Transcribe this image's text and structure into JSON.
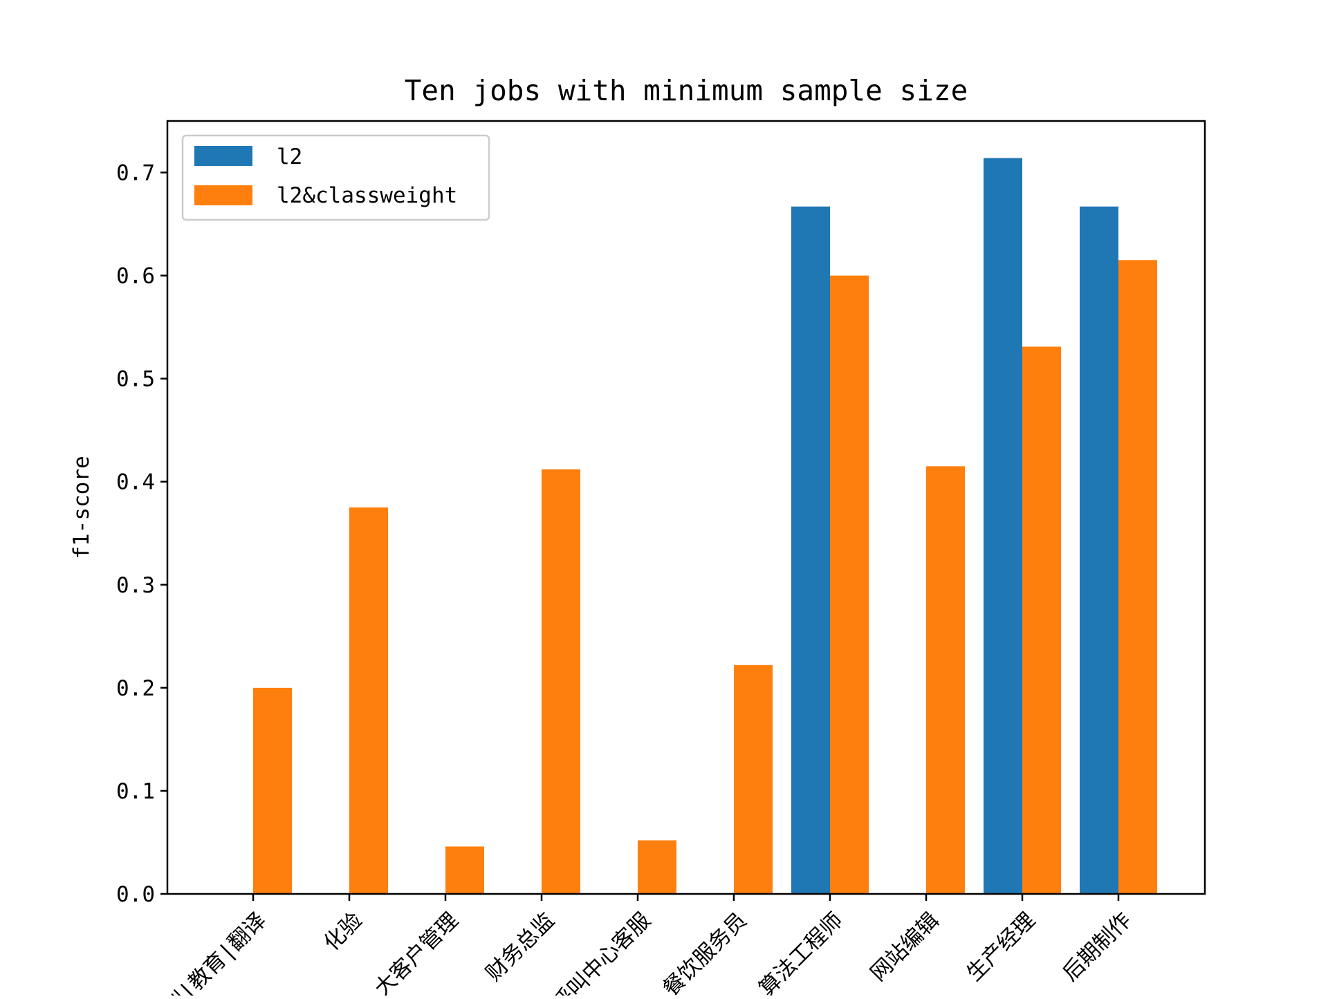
{
  "chart_data": {
    "type": "bar",
    "title": "Ten jobs with minimum sample size",
    "xlabel": "",
    "ylabel": "f1-score",
    "ylim": [
      0,
      0.75
    ],
    "yticks": [
      "0.0",
      "0.1",
      "0.2",
      "0.3",
      "0.4",
      "0.5",
      "0.6",
      "0.7"
    ],
    "categories": [
      "培训|教育|翻译",
      "化验",
      "大客户管理",
      "财务总监",
      "呼叫中心客服",
      "餐饮服务员",
      "算法工程师",
      "网站编辑",
      "生产经理",
      "后期制作"
    ],
    "series": [
      {
        "name": "l2",
        "color": "#1f77b4",
        "values": [
          0,
          0,
          0,
          0,
          0,
          0,
          0.667,
          0,
          0.714,
          0.667
        ]
      },
      {
        "name": "l2&classweight",
        "color": "#ff7f0e",
        "values": [
          0.2,
          0.375,
          0.046,
          0.412,
          0.052,
          0.222,
          0.6,
          0.415,
          0.531,
          0.615
        ]
      }
    ],
    "grid": false,
    "legend_position": "top-left"
  }
}
